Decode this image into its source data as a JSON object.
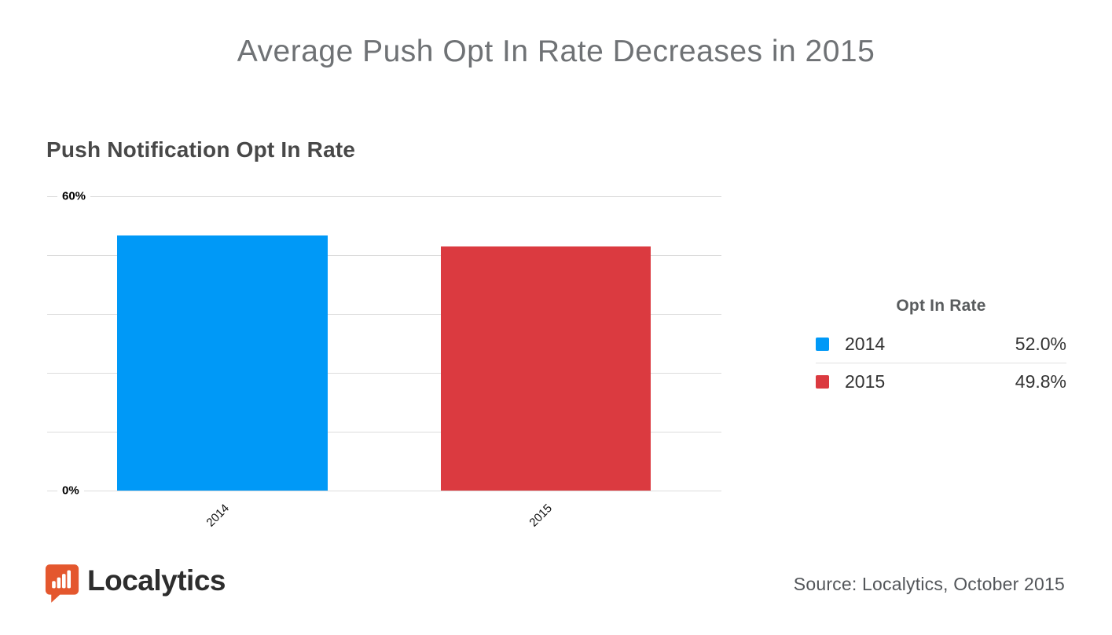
{
  "page": {
    "title": "Average Push Opt In Rate Decreases in 2015"
  },
  "chart_data": {
    "type": "bar",
    "title": "Push Notification Opt In Rate",
    "categories": [
      "2014",
      "2015"
    ],
    "values": [
      52.0,
      49.8
    ],
    "value_labels": [
      "52.0%",
      "49.8%"
    ],
    "colors": [
      "#0099F7",
      "#DB3A40"
    ],
    "xlabel": "",
    "ylabel": "",
    "ylim": [
      0,
      60
    ],
    "y_axis": {
      "top_label": "60%",
      "bottom_label": "0%"
    },
    "grid": "horizontal gridlines, 6 lines between 0% and 60%",
    "legend": {
      "position": "right",
      "title": "Opt In Rate",
      "entries": [
        {
          "label": "2014",
          "value": "52.0%",
          "color": "#0099F7"
        },
        {
          "label": "2015",
          "value": "49.8%",
          "color": "#DB3A40"
        }
      ]
    }
  },
  "footer": {
    "logo": {
      "text": "Localytics",
      "icon": "bar-chart-speech-bubble-icon",
      "color": "#E4572E"
    },
    "source": "Source: Localytics, October 2015"
  }
}
